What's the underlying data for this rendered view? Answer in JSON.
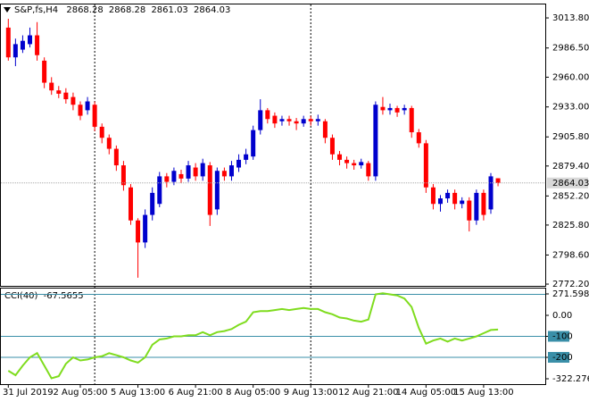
{
  "chart_data": {
    "type": "candlestick",
    "title": "S&P,fs,H4",
    "categories": [
      "31 Jul 2019",
      null,
      null,
      null,
      null,
      null,
      null,
      null,
      null,
      null,
      "2 Aug 05:00",
      null,
      null,
      null,
      null,
      null,
      null,
      null,
      "5 Aug 13:00",
      null,
      null,
      null,
      null,
      null,
      null,
      null,
      "6 Aug 21:00",
      null,
      null,
      null,
      null,
      null,
      null,
      null,
      "8 Aug 05:00",
      null,
      null,
      null,
      null,
      null,
      null,
      null,
      "9 Aug 13:00",
      null,
      null,
      null,
      null,
      null,
      null,
      null,
      "12 Aug 21:00",
      null,
      null,
      null,
      null,
      null,
      null,
      null,
      "14 Aug 05:00",
      null,
      null,
      null,
      null,
      null,
      null,
      null,
      "15 Aug 13:00",
      null,
      null
    ],
    "open": [
      3005,
      2978,
      2985,
      2990,
      2998,
      2975,
      2955,
      2948,
      2946,
      2942,
      2935,
      2930,
      2935,
      2915,
      2905,
      2895,
      2880,
      2860,
      2830,
      2810,
      2835,
      2845,
      2870,
      2865,
      2872,
      2868,
      2878,
      2870,
      2880,
      2840,
      2875,
      2870,
      2878,
      2885,
      2888,
      2912,
      2930,
      2925,
      2920,
      2922,
      2920,
      2918,
      2922,
      2920,
      2920,
      2905,
      2890,
      2885,
      2882,
      2880,
      2882,
      2870,
      2933,
      2930,
      2932,
      2930,
      2932,
      2910,
      2900,
      2860,
      2845,
      2850,
      2855,
      2845,
      2848,
      2830,
      2855,
      2840,
      2868.28
    ],
    "high": [
      3013,
      2995,
      2998,
      3005,
      3010,
      2978,
      2960,
      2952,
      2950,
      2946,
      2938,
      2942,
      2938,
      2918,
      2908,
      2898,
      2884,
      2863,
      2832,
      2840,
      2860,
      2874,
      2873,
      2878,
      2876,
      2884,
      2882,
      2886,
      2883,
      2878,
      2878,
      2884,
      2890,
      2895,
      2916,
      2940,
      2932,
      2928,
      2925,
      2925,
      2923,
      2925,
      2925,
      2926,
      2922,
      2908,
      2893,
      2888,
      2885,
      2886,
      2884,
      2938,
      2942,
      2936,
      2934,
      2935,
      2934,
      2913,
      2903,
      2863,
      2853,
      2858,
      2858,
      2851,
      2851,
      2858,
      2858,
      2873,
      2868.28
    ],
    "low": [
      2975,
      2970,
      2982,
      2987,
      2975,
      2950,
      2944,
      2941,
      2936,
      2930,
      2921,
      2926,
      2911,
      2900,
      2890,
      2875,
      2857,
      2826,
      2778,
      2805,
      2830,
      2842,
      2860,
      2862,
      2864,
      2865,
      2866,
      2866,
      2825,
      2835,
      2866,
      2866,
      2874,
      2881,
      2885,
      2908,
      2918,
      2914,
      2916,
      2916,
      2912,
      2915,
      2916,
      2916,
      2900,
      2885,
      2880,
      2877,
      2876,
      2877,
      2866,
      2866,
      2926,
      2926,
      2924,
      2926,
      2905,
      2896,
      2855,
      2840,
      2838,
      2846,
      2840,
      2841,
      2820,
      2826,
      2830,
      2836,
      2861.03
    ],
    "close": [
      2978,
      2990,
      2993,
      2998,
      2980,
      2955,
      2948,
      2945,
      2940,
      2935,
      2925,
      2938,
      2915,
      2905,
      2895,
      2880,
      2862,
      2830,
      2810,
      2835,
      2855,
      2870,
      2865,
      2875,
      2868,
      2880,
      2870,
      2882,
      2835,
      2875,
      2870,
      2880,
      2885,
      2890,
      2912,
      2930,
      2922,
      2918,
      2922,
      2920,
      2918,
      2922,
      2920,
      2922,
      2905,
      2890,
      2885,
      2882,
      2880,
      2883,
      2870,
      2935,
      2930,
      2932,
      2928,
      2932,
      2910,
      2900,
      2860,
      2845,
      2850,
      2855,
      2845,
      2848,
      2830,
      2855,
      2835,
      2870,
      2864.03
    ],
    "value_labels": {
      "open": "2868.28",
      "high": "2868.28",
      "low": "2861.03",
      "close": "2864.03"
    },
    "up_color": "#0000cd",
    "down_color": "#ff0000",
    "ylim": [
      2770.6,
      3026.0
    ],
    "yticks": [
      {
        "value": 3013.8,
        "label": "3013.80"
      },
      {
        "value": 2986.5,
        "label": "2986.50"
      },
      {
        "value": 2960,
        "label": "2960.00"
      },
      {
        "value": 2933,
        "label": "2933.00"
      },
      {
        "value": 2905.8,
        "label": "2905.80"
      },
      {
        "value": 2879.4,
        "label": "2879.40"
      },
      {
        "value": 2852.2,
        "label": "2852.20"
      },
      {
        "value": 2825.8,
        "label": "2825.80"
      },
      {
        "value": 2798.6,
        "label": "2798.60"
      },
      {
        "value": 2772.2,
        "label": "2772.20"
      }
    ],
    "indicator": {
      "name": "CCI(40)",
      "color": "#7fdc1e",
      "level_color": "#3a8fa8",
      "values": [
        -264,
        -285,
        -240,
        -200,
        -180,
        -240,
        -300,
        -290,
        -230,
        -200,
        -215,
        -210,
        -200,
        -195,
        -180,
        -190,
        -200,
        -215,
        -225,
        -200,
        -140,
        -115,
        -110,
        -100,
        -100,
        -95,
        -95,
        -80,
        -95,
        -80,
        -75,
        -65,
        -45,
        -30,
        15,
        20,
        20,
        25,
        30,
        25,
        30,
        35,
        30,
        30,
        15,
        5,
        -10,
        -15,
        -25,
        -30,
        -20,
        100,
        105,
        100,
        95,
        80,
        40,
        -60,
        -135,
        -120,
        -110,
        -125,
        -110,
        -120,
        -110,
        -100,
        -85,
        -70,
        -67.5655
      ],
      "value_label": "-67.5655",
      "ylim": [
        -322.2764,
        271.5985
      ],
      "levels": [
        100,
        -100,
        -200
      ],
      "yticks": [
        {
          "value": 271.5985,
          "label": "271.5985"
        },
        {
          "value": 0,
          "label": "0.00"
        },
        -100,
        -200,
        {
          "value": -322.2764,
          "label": "-322.2764"
        }
      ]
    }
  }
}
